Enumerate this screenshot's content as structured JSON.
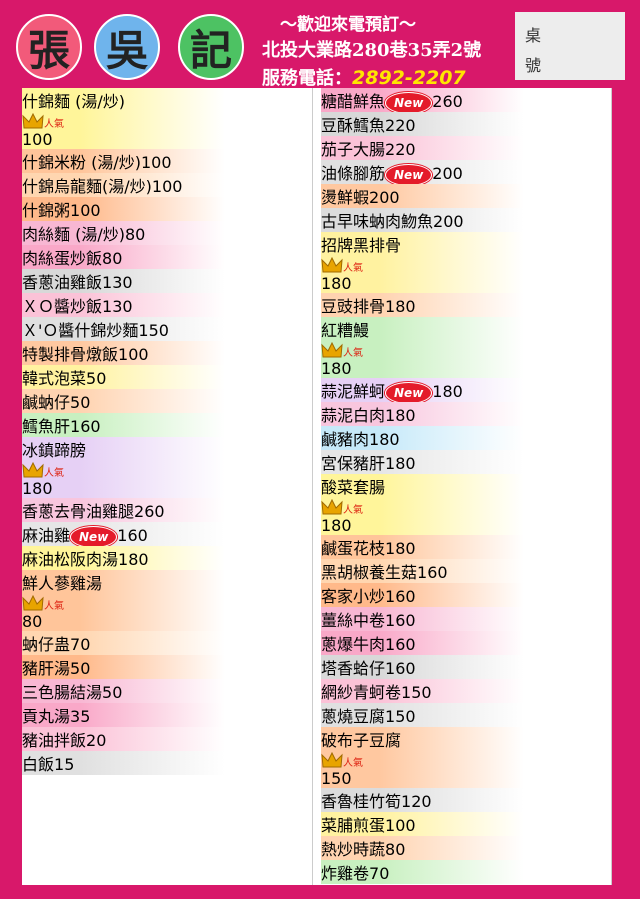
{
  "header": {
    "logo": [
      "張",
      "吳",
      "記"
    ],
    "welcome": "～歡迎來電預訂～",
    "address": "北投大業路280巷35弄2號",
    "phone_label": "服務電話：",
    "phone": "2892-2207",
    "table_label": [
      "桌",
      "號"
    ]
  },
  "menu": {
    "left": [
      {
        "name": "什錦麵 (湯/炒)",
        "badge": "人氣",
        "price": "100"
      },
      {
        "name": "什錦米粉 (湯/炒)",
        "price": "100"
      },
      {
        "name": "什錦烏龍麵(湯/炒)",
        "price": "100"
      },
      {
        "name": "什錦粥",
        "price": "100"
      },
      {
        "name": "肉絲麵 (湯/炒)",
        "price": "80"
      },
      {
        "name": "肉絲蛋炒飯",
        "price": "80"
      },
      {
        "name": "香蔥油雞飯",
        "price": "130"
      },
      {
        "name": "ＸＯ醬炒飯",
        "price": "130"
      },
      {
        "name": "Ｘ'Ｏ醬什錦炒麵",
        "price": "150"
      },
      {
        "name": "特製排骨燉飯",
        "price": "100"
      },
      null,
      {
        "name": "韓式泡菜",
        "price": "50"
      },
      {
        "name": "鹹蚋仔",
        "price": "50"
      },
      {
        "name": "鱈魚肝",
        "price": "160"
      },
      {
        "name": "冰鎮蹄膀",
        "badge": "人氣",
        "price": "180"
      },
      {
        "name": "香蔥去骨油雞腿",
        "price": "260"
      },
      null,
      {
        "name": "麻油雞",
        "badge": "New",
        "price": "160"
      },
      {
        "name": "麻油松阪肉湯",
        "price": "180"
      },
      {
        "name": "鮮人蔘雞湯",
        "badge": "人氣",
        "price": "80"
      },
      {
        "name": "蚋仔蛊",
        "price": "70"
      },
      {
        "name": "豬肝湯",
        "price": "50"
      },
      {
        "name": "三色腸結湯",
        "price": "50"
      },
      {
        "name": "貢丸湯",
        "price": "35"
      },
      null,
      {
        "name": "豬油拌飯",
        "price": "20"
      },
      {
        "name": "白飯",
        "price": "15"
      }
    ],
    "right": [
      {
        "name": "糖醋鮮魚",
        "badge": "New",
        "price": "260"
      },
      {
        "name": "豆酥鱈魚",
        "price": "220"
      },
      {
        "name": "茄子大腸",
        "price": "220"
      },
      {
        "name": "油條腳筋",
        "badge": "New",
        "price": "200"
      },
      {
        "name": "燙鮮蝦",
        "price": "200"
      },
      {
        "name": "古早味蚋肉魩魚",
        "price": "200"
      },
      {
        "name": "招牌黑排骨",
        "badge": "人氣",
        "price": "180"
      },
      {
        "name": "豆豉排骨",
        "price": "180"
      },
      {
        "name": "紅糟鰻",
        "badge": "人氣",
        "price": "180"
      },
      {
        "name": "蒜泥鮮蚵",
        "badge": "New",
        "price": "180"
      },
      {
        "name": "蒜泥白肉",
        "price": "180"
      },
      {
        "name": "鹹豬肉",
        "price": "180"
      },
      {
        "name": "宮保豬肝",
        "price": "180"
      },
      {
        "name": "酸菜套腸",
        "badge": "人氣",
        "price": "180"
      },
      {
        "name": "鹹蛋花枝",
        "price": "180"
      },
      {
        "name": "黑胡椒養生菇",
        "price": "160"
      },
      {
        "name": "客家小炒",
        "price": "160"
      },
      {
        "name": "薑絲中卷",
        "price": "160"
      },
      {
        "name": "蔥爆牛肉",
        "price": "160"
      },
      {
        "name": "塔香蛤仔",
        "price": "160"
      },
      {
        "name": "網紗青蚵卷",
        "price": "150"
      },
      {
        "name": "蔥燒豆腐",
        "price": "150"
      },
      {
        "name": "破布子豆腐",
        "badge": "人氣",
        "price": "150"
      },
      {
        "name": "香魯桂竹筍",
        "price": "120"
      },
      {
        "name": "菜脯煎蛋",
        "price": "100"
      },
      {
        "name": "熱炒時蔬",
        "price": "80"
      },
      {
        "name": "炸雞卷",
        "price": "70"
      }
    ]
  }
}
